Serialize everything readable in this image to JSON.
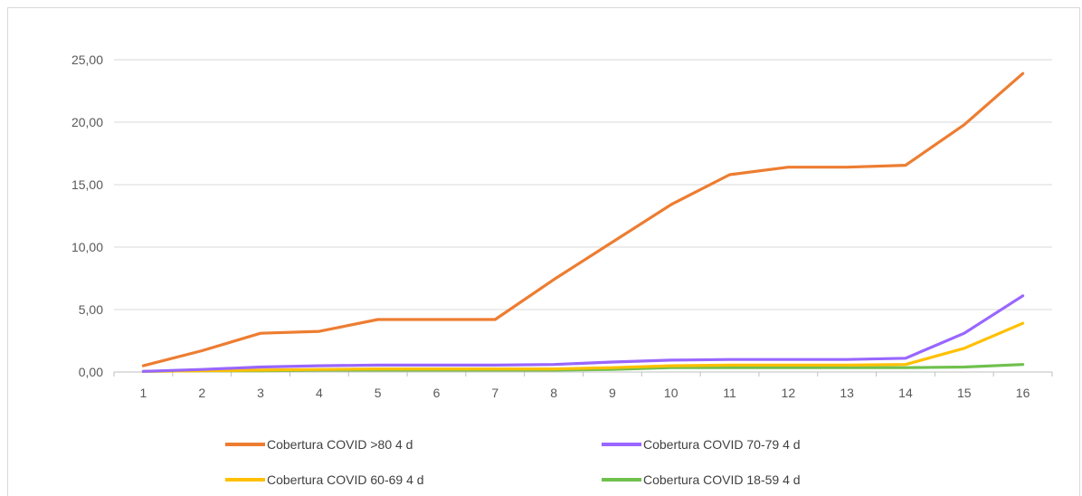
{
  "chart_data": {
    "type": "line",
    "categories": [
      "1",
      "2",
      "3",
      "4",
      "5",
      "6",
      "7",
      "8",
      "9",
      "10",
      "11",
      "12",
      "13",
      "14",
      "15",
      "16"
    ],
    "ylim": [
      0,
      25
    ],
    "y_ticks": [
      "0,00",
      "5,00",
      "10,00",
      "15,00",
      "20,00",
      "25,00"
    ],
    "grid": true,
    "legend_position": "bottom",
    "series": [
      {
        "name": "Cobertura COVID >80 4 d",
        "color": "#ED7D31",
        "values": [
          0.5,
          1.7,
          3.1,
          3.25,
          4.2,
          4.2,
          4.2,
          7.4,
          10.4,
          13.4,
          15.8,
          16.4,
          16.4,
          16.55,
          19.8,
          23.9
        ]
      },
      {
        "name": "Cobertura COVID 70-79 4 d",
        "color": "#9966FF",
        "values": [
          0.05,
          0.2,
          0.4,
          0.5,
          0.55,
          0.55,
          0.55,
          0.6,
          0.8,
          0.95,
          1.0,
          1.0,
          1.0,
          1.1,
          3.1,
          6.1
        ]
      },
      {
        "name": "Cobertura COVID 60-69 4 d",
        "color": "#FFC000",
        "values": [
          0.05,
          0.1,
          0.15,
          0.2,
          0.25,
          0.25,
          0.25,
          0.25,
          0.35,
          0.5,
          0.55,
          0.55,
          0.55,
          0.6,
          1.9,
          3.9
        ]
      },
      {
        "name": "Cobertura COVID 18-59 4 d",
        "color": "#70C04E",
        "values": [
          0.05,
          0.1,
          0.1,
          0.15,
          0.15,
          0.15,
          0.15,
          0.15,
          0.2,
          0.35,
          0.35,
          0.35,
          0.35,
          0.35,
          0.4,
          0.6
        ]
      }
    ]
  }
}
